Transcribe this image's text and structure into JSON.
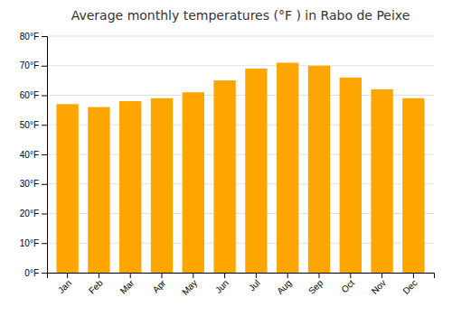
{
  "chart_data": {
    "type": "bar",
    "title": "Average monthly temperatures (°F ) in Rabo de Peixe",
    "categories": [
      "Jan",
      "Feb",
      "Mar",
      "Apr",
      "May",
      "Jun",
      "Jul",
      "Aug",
      "Sep",
      "Oct",
      "Nov",
      "Dec"
    ],
    "values": [
      57,
      56,
      58,
      59,
      61,
      65,
      69,
      71,
      70,
      66,
      62,
      59
    ],
    "color": "#FFA500",
    "ylim": [
      0,
      80
    ],
    "yticks": [
      {
        "value": 0,
        "label": "0°F"
      },
      {
        "value": 10,
        "label": "10°F"
      },
      {
        "value": 20,
        "label": "20°F"
      },
      {
        "value": 30,
        "label": "30°F"
      },
      {
        "value": 40,
        "label": "40°F"
      },
      {
        "value": 50,
        "label": "50°F"
      },
      {
        "value": 60,
        "label": "60°F"
      },
      {
        "value": 70,
        "label": "70°F"
      },
      {
        "value": 80,
        "label": "80°F"
      }
    ],
    "grid": true
  }
}
